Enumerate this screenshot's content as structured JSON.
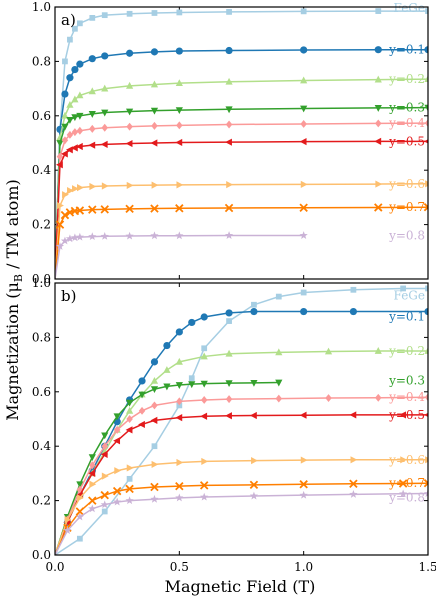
{
  "figure": {
    "ylabel_main": "Magnetization (",
    "ylabel_mu": "μ",
    "ylabel_sub": "B",
    "ylabel_rest": " / TM atom)",
    "xlabel": "Magnetic Field (T)"
  },
  "series_styles": [
    {
      "name": "FeGe",
      "label": "FeGe",
      "color": "#a6cee3",
      "marker": "square"
    },
    {
      "name": "y=0.1",
      "label": "y=0.1",
      "color": "#1f78b4",
      "marker": "circle"
    },
    {
      "name": "y=0.2",
      "label": "y=0.2",
      "color": "#b2df8a",
      "marker": "triangle-up"
    },
    {
      "name": "y=0.3",
      "label": "y=0.3",
      "color": "#33a02c",
      "marker": "triangle-down"
    },
    {
      "name": "y=0.4",
      "label": "y=0.4",
      "color": "#fb9a99",
      "marker": "diamond"
    },
    {
      "name": "y=0.5",
      "label": "y=0.5",
      "color": "#e31a1c",
      "marker": "triangle-left"
    },
    {
      "name": "y=0.6",
      "label": "y=0.6",
      "color": "#fdbf6f",
      "marker": "triangle-right"
    },
    {
      "name": "y=0.7",
      "label": "y=0.7",
      "color": "#ff7f00",
      "marker": "x"
    },
    {
      "name": "y=0.8",
      "label": "y=0.8",
      "color": "#cab2d6",
      "marker": "star"
    }
  ],
  "chart_data": [
    {
      "type": "line",
      "panel_label": "a)",
      "xlim": [
        0,
        1.5
      ],
      "ylim": [
        0,
        1.0
      ],
      "yticks": [
        "0.0",
        "0.2",
        "0.4",
        "0.6",
        "0.8",
        "1.0"
      ],
      "xtick_values": [
        0,
        0.5,
        1.0,
        1.5
      ],
      "x_tick_labels_shown": false,
      "series": [
        {
          "name": "FeGe",
          "x": [
            0.0,
            0.02,
            0.04,
            0.06,
            0.08,
            0.1,
            0.15,
            0.2,
            0.3,
            0.4,
            0.5,
            0.7,
            1.0,
            1.3,
            1.5
          ],
          "values": [
            0.0,
            0.55,
            0.8,
            0.88,
            0.92,
            0.94,
            0.96,
            0.97,
            0.975,
            0.978,
            0.98,
            0.982,
            0.984,
            0.985,
            0.985
          ]
        },
        {
          "name": "y=0.1",
          "x": [
            0.0,
            0.02,
            0.04,
            0.06,
            0.08,
            0.1,
            0.15,
            0.2,
            0.3,
            0.4,
            0.5,
            0.7,
            1.0,
            1.3,
            1.5
          ],
          "values": [
            0.0,
            0.55,
            0.68,
            0.74,
            0.77,
            0.79,
            0.81,
            0.82,
            0.83,
            0.835,
            0.838,
            0.84,
            0.842,
            0.843,
            0.843
          ]
        },
        {
          "name": "y=0.2",
          "x": [
            0.0,
            0.02,
            0.04,
            0.06,
            0.08,
            0.1,
            0.15,
            0.2,
            0.3,
            0.4,
            0.5,
            0.7,
            1.0,
            1.3,
            1.5
          ],
          "values": [
            0.0,
            0.52,
            0.6,
            0.64,
            0.66,
            0.675,
            0.69,
            0.7,
            0.71,
            0.715,
            0.72,
            0.725,
            0.73,
            0.733,
            0.735
          ]
        },
        {
          "name": "y=0.3",
          "x": [
            0.0,
            0.02,
            0.04,
            0.06,
            0.08,
            0.1,
            0.15,
            0.2,
            0.3,
            0.4,
            0.5,
            0.7,
            1.0,
            1.3,
            1.5
          ],
          "values": [
            0.0,
            0.5,
            0.56,
            0.585,
            0.595,
            0.6,
            0.607,
            0.612,
            0.616,
            0.619,
            0.621,
            0.624,
            0.627,
            0.629,
            0.63
          ]
        },
        {
          "name": "y=0.4",
          "x": [
            0.0,
            0.02,
            0.04,
            0.06,
            0.08,
            0.1,
            0.15,
            0.2,
            0.3,
            0.4,
            0.5,
            0.7,
            1.0,
            1.3,
            1.5
          ],
          "values": [
            0.0,
            0.45,
            0.51,
            0.53,
            0.54,
            0.545,
            0.552,
            0.556,
            0.56,
            0.563,
            0.565,
            0.568,
            0.57,
            0.572,
            0.573
          ]
        },
        {
          "name": "y=0.5",
          "x": [
            0.0,
            0.02,
            0.04,
            0.06,
            0.08,
            0.1,
            0.15,
            0.2,
            0.3,
            0.4,
            0.5,
            0.7,
            1.0,
            1.3,
            1.5
          ],
          "values": [
            0.0,
            0.42,
            0.46,
            0.475,
            0.482,
            0.487,
            0.492,
            0.495,
            0.498,
            0.5,
            0.502,
            0.503,
            0.505,
            0.506,
            0.506
          ]
        },
        {
          "name": "y=0.6",
          "x": [
            0.0,
            0.02,
            0.04,
            0.06,
            0.08,
            0.1,
            0.15,
            0.2,
            0.3,
            0.4,
            0.5,
            0.7,
            1.0,
            1.3,
            1.5
          ],
          "values": [
            0.0,
            0.27,
            0.31,
            0.325,
            0.332,
            0.336,
            0.34,
            0.342,
            0.344,
            0.345,
            0.346,
            0.347,
            0.348,
            0.349,
            0.35
          ]
        },
        {
          "name": "y=0.7",
          "x": [
            0.0,
            0.02,
            0.04,
            0.06,
            0.08,
            0.1,
            0.15,
            0.2,
            0.3,
            0.4,
            0.5,
            0.7,
            1.0,
            1.3,
            1.5
          ],
          "values": [
            0.0,
            0.2,
            0.235,
            0.245,
            0.25,
            0.252,
            0.255,
            0.256,
            0.258,
            0.259,
            0.26,
            0.261,
            0.262,
            0.263,
            0.264
          ]
        },
        {
          "name": "y=0.8",
          "x": [
            0.0,
            0.02,
            0.04,
            0.06,
            0.08,
            0.1,
            0.15,
            0.2,
            0.3,
            0.4,
            0.5,
            0.7,
            1.0
          ],
          "values": [
            0.0,
            0.12,
            0.14,
            0.148,
            0.152,
            0.154,
            0.156,
            0.157,
            0.158,
            0.159,
            0.159,
            0.16,
            0.16
          ]
        }
      ]
    },
    {
      "type": "line",
      "panel_label": "b)",
      "xlim": [
        0,
        1.5
      ],
      "ylim": [
        0,
        1.0
      ],
      "yticks": [
        "0.0",
        "0.2",
        "0.4",
        "0.6",
        "0.8",
        "1.0"
      ],
      "xtick_values": [
        0,
        0.5,
        1.0,
        1.5
      ],
      "xticks": [
        "0.0",
        "0.5",
        "1.0",
        "1.5"
      ],
      "x_tick_labels_shown": true,
      "series": [
        {
          "name": "FeGe",
          "x": [
            0.0,
            0.1,
            0.2,
            0.3,
            0.4,
            0.5,
            0.55,
            0.6,
            0.7,
            0.8,
            0.9,
            1.0,
            1.2,
            1.4,
            1.5
          ],
          "values": [
            0.0,
            0.06,
            0.16,
            0.28,
            0.4,
            0.55,
            0.65,
            0.76,
            0.86,
            0.92,
            0.95,
            0.965,
            0.975,
            0.98,
            0.98
          ]
        },
        {
          "name": "y=0.1",
          "x": [
            0.0,
            0.05,
            0.1,
            0.15,
            0.2,
            0.25,
            0.3,
            0.35,
            0.4,
            0.45,
            0.5,
            0.55,
            0.6,
            0.7,
            0.8,
            1.0,
            1.2,
            1.5
          ],
          "values": [
            0.0,
            0.12,
            0.22,
            0.31,
            0.4,
            0.49,
            0.57,
            0.64,
            0.71,
            0.77,
            0.82,
            0.855,
            0.875,
            0.89,
            0.895,
            0.895,
            0.895,
            0.895
          ]
        },
        {
          "name": "y=0.2",
          "x": [
            0.0,
            0.05,
            0.1,
            0.15,
            0.2,
            0.25,
            0.3,
            0.35,
            0.4,
            0.45,
            0.5,
            0.6,
            0.7,
            0.9,
            1.1,
            1.3,
            1.5
          ],
          "values": [
            0.0,
            0.12,
            0.22,
            0.3,
            0.38,
            0.46,
            0.53,
            0.59,
            0.64,
            0.68,
            0.71,
            0.73,
            0.74,
            0.745,
            0.748,
            0.75,
            0.75
          ]
        },
        {
          "name": "y=0.3",
          "x": [
            0.0,
            0.05,
            0.1,
            0.15,
            0.2,
            0.25,
            0.3,
            0.35,
            0.4,
            0.45,
            0.5,
            0.55,
            0.6,
            0.7,
            0.8,
            0.9
          ],
          "values": [
            0.0,
            0.14,
            0.26,
            0.36,
            0.44,
            0.51,
            0.56,
            0.59,
            0.61,
            0.62,
            0.625,
            0.628,
            0.63,
            0.632,
            0.633,
            0.634
          ]
        },
        {
          "name": "y=0.4",
          "x": [
            0.0,
            0.05,
            0.1,
            0.15,
            0.2,
            0.25,
            0.3,
            0.35,
            0.4,
            0.5,
            0.6,
            0.7,
            0.9,
            1.1,
            1.3,
            1.5
          ],
          "values": [
            0.0,
            0.13,
            0.24,
            0.33,
            0.4,
            0.46,
            0.5,
            0.53,
            0.55,
            0.565,
            0.57,
            0.573,
            0.575,
            0.577,
            0.578,
            0.58
          ]
        },
        {
          "name": "y=0.5",
          "x": [
            0.0,
            0.05,
            0.1,
            0.15,
            0.2,
            0.25,
            0.3,
            0.35,
            0.4,
            0.5,
            0.6,
            0.7,
            0.8,
            1.0,
            1.2,
            1.4,
            1.5
          ],
          "values": [
            0.0,
            0.12,
            0.22,
            0.3,
            0.37,
            0.42,
            0.46,
            0.48,
            0.495,
            0.505,
            0.51,
            0.512,
            0.513,
            0.514,
            0.515,
            0.515,
            0.515
          ]
        },
        {
          "name": "y=0.6",
          "x": [
            0.0,
            0.05,
            0.1,
            0.15,
            0.2,
            0.25,
            0.3,
            0.4,
            0.5,
            0.6,
            0.8,
            1.0,
            1.2,
            1.4,
            1.5
          ],
          "values": [
            0.0,
            0.13,
            0.21,
            0.26,
            0.29,
            0.31,
            0.32,
            0.333,
            0.34,
            0.344,
            0.347,
            0.349,
            0.35,
            0.35,
            0.35
          ]
        },
        {
          "name": "y=0.7",
          "x": [
            0.0,
            0.05,
            0.1,
            0.15,
            0.2,
            0.25,
            0.3,
            0.4,
            0.5,
            0.6,
            0.8,
            1.0,
            1.2,
            1.4,
            1.5
          ],
          "values": [
            0.0,
            0.1,
            0.16,
            0.2,
            0.22,
            0.235,
            0.243,
            0.25,
            0.253,
            0.256,
            0.258,
            0.26,
            0.262,
            0.263,
            0.264
          ]
        },
        {
          "name": "y=0.8",
          "x": [
            0.0,
            0.05,
            0.1,
            0.15,
            0.2,
            0.25,
            0.3,
            0.4,
            0.5,
            0.6,
            0.8,
            1.0,
            1.2,
            1.4,
            1.5
          ],
          "values": [
            0.0,
            0.09,
            0.14,
            0.17,
            0.185,
            0.195,
            0.2,
            0.205,
            0.21,
            0.213,
            0.217,
            0.22,
            0.223,
            0.225,
            0.226
          ]
        }
      ]
    }
  ]
}
